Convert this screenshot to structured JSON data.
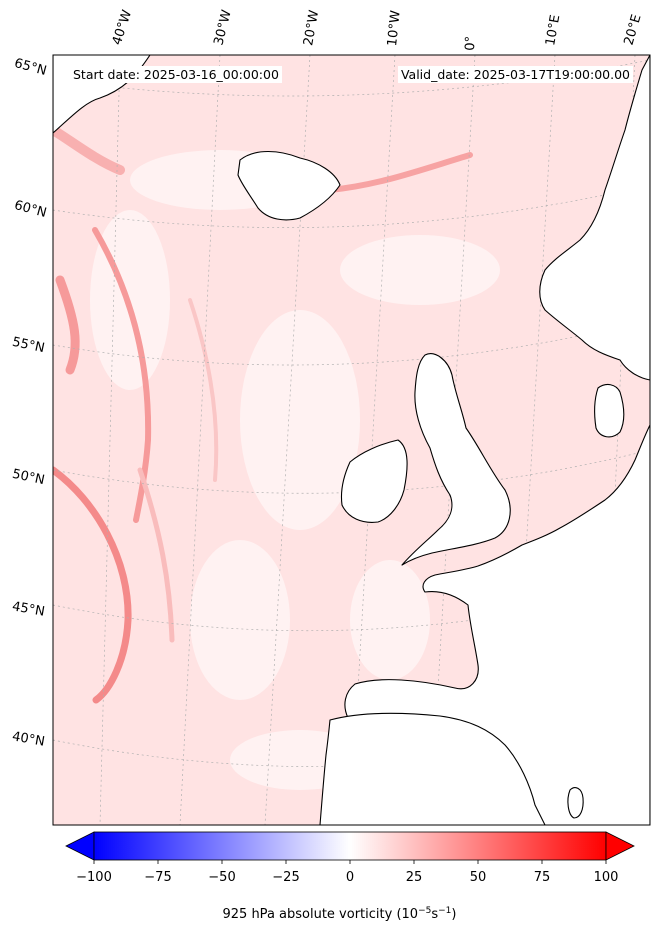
{
  "header": {
    "start_date": "Start date: 2025-03-16_00:00:00",
    "valid_date": "Valid_date: 2025-03-17T19:00:00.00"
  },
  "map": {
    "projection": "stereographic",
    "region": "North-East Atlantic / Western Europe",
    "lat_labels": [
      "65°N",
      "60°N",
      "55°N",
      "50°N",
      "45°N",
      "40°N"
    ],
    "lon_labels": [
      "40°W",
      "30°W",
      "20°W",
      "10°W",
      "0°",
      "10°E",
      "20°E"
    ],
    "ocean_fill": "#ffe3e3",
    "land_fill": "#ffffff",
    "coastline_color": "#000000",
    "gridline_color": "#b0b0b0"
  },
  "colorbar": {
    "label": "925 hPa absolute vorticity (10",
    "label_exp1": "−5",
    "label_mid": "s",
    "label_exp2": "−1",
    "label_end": ")",
    "ticks": [
      "−100",
      "−75",
      "−50",
      "−25",
      "0",
      "25",
      "50",
      "75",
      "100"
    ],
    "range": [
      -100,
      100
    ],
    "cmap": "bwr",
    "extend": "both",
    "min_color": "#0000ff",
    "mid_color": "#ffffff",
    "max_color": "#ff0000"
  }
}
